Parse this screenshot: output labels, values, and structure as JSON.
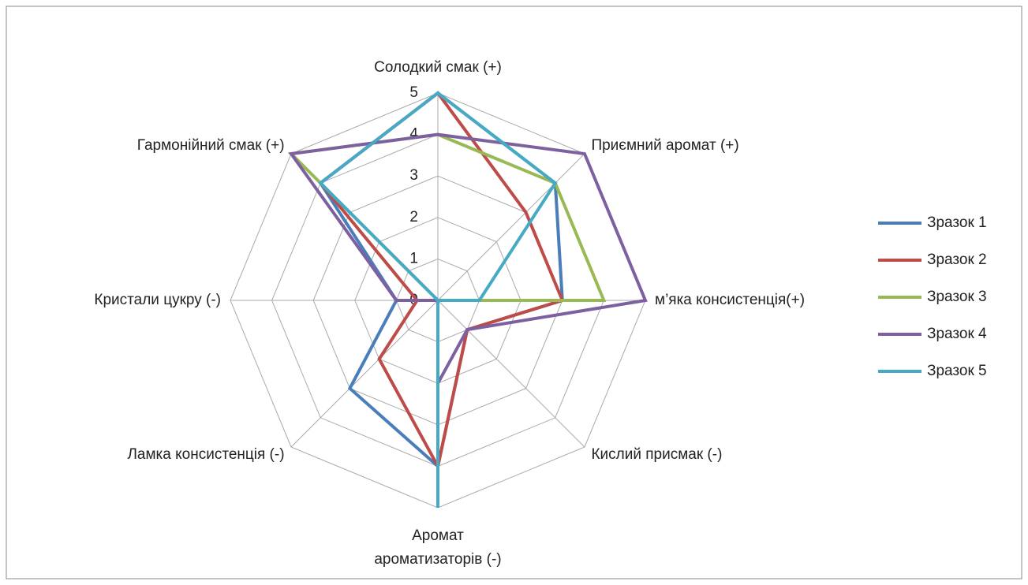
{
  "chart_data": {
    "type": "radar",
    "categories": [
      "Солодкий смак (+)",
      "Приємний аромат (+)",
      "м’яка консистенція(+)",
      "Кислий присмак (-)",
      [
        "Аромат",
        "ароматизаторів (-)"
      ],
      "Ламка консистенція (-)",
      "Кристали цукру (-)",
      "Гармонійний смак (+)"
    ],
    "series": [
      {
        "name": "Зразок 1",
        "color": "#4a7ebb",
        "values": [
          5,
          4,
          3,
          1,
          4,
          3,
          1,
          4
        ]
      },
      {
        "name": "Зразок 2",
        "color": "#be4b48",
        "values": [
          5,
          3,
          3,
          1,
          4,
          2,
          0.5,
          4
        ]
      },
      {
        "name": "Зразок 3",
        "color": "#98b954",
        "values": [
          4,
          4,
          4,
          0,
          0,
          0,
          0,
          5
        ]
      },
      {
        "name": "Зразок 4",
        "color": "#7d60a0",
        "values": [
          4,
          5,
          5,
          1,
          2,
          0,
          1,
          5
        ]
      },
      {
        "name": "Зразок 5",
        "color": "#46aac5",
        "values": [
          5,
          4,
          1,
          0,
          5,
          0,
          0,
          4
        ]
      }
    ],
    "ylim": [
      0,
      5
    ],
    "yticks": [
      0,
      1,
      2,
      3,
      4,
      5
    ],
    "grid": true,
    "legend": "right"
  }
}
